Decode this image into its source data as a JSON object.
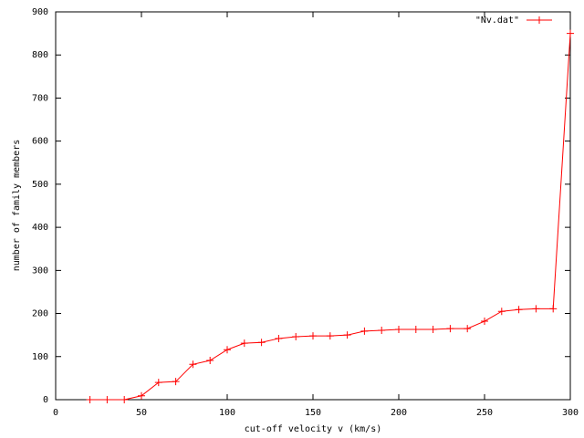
{
  "chart_data": {
    "type": "line",
    "xlabel": "cut-off velocity v (km/s)",
    "ylabel": "number of family members",
    "x": [
      20,
      30,
      40,
      50,
      60,
      70,
      80,
      90,
      100,
      110,
      120,
      130,
      140,
      150,
      160,
      170,
      180,
      190,
      200,
      210,
      220,
      230,
      240,
      250,
      260,
      270,
      280,
      290,
      300
    ],
    "series": [
      {
        "name": "\"Nv.dat\"",
        "color": "#ff0000",
        "values": [
          0,
          0,
          0,
          9,
          40,
          42,
          82,
          91,
          116,
          131,
          133,
          142,
          146,
          148,
          148,
          150,
          159,
          161,
          163,
          163,
          163,
          165,
          165,
          182,
          205,
          209,
          211,
          211,
          850
        ]
      }
    ],
    "xlim": [
      0,
      300
    ],
    "xticks": [
      0,
      50,
      100,
      150,
      200,
      250,
      300
    ],
    "ylim": [
      0,
      900
    ],
    "yticks": [
      0,
      100,
      200,
      300,
      400,
      500,
      600,
      700,
      800,
      900
    ],
    "legend": "top-right"
  }
}
